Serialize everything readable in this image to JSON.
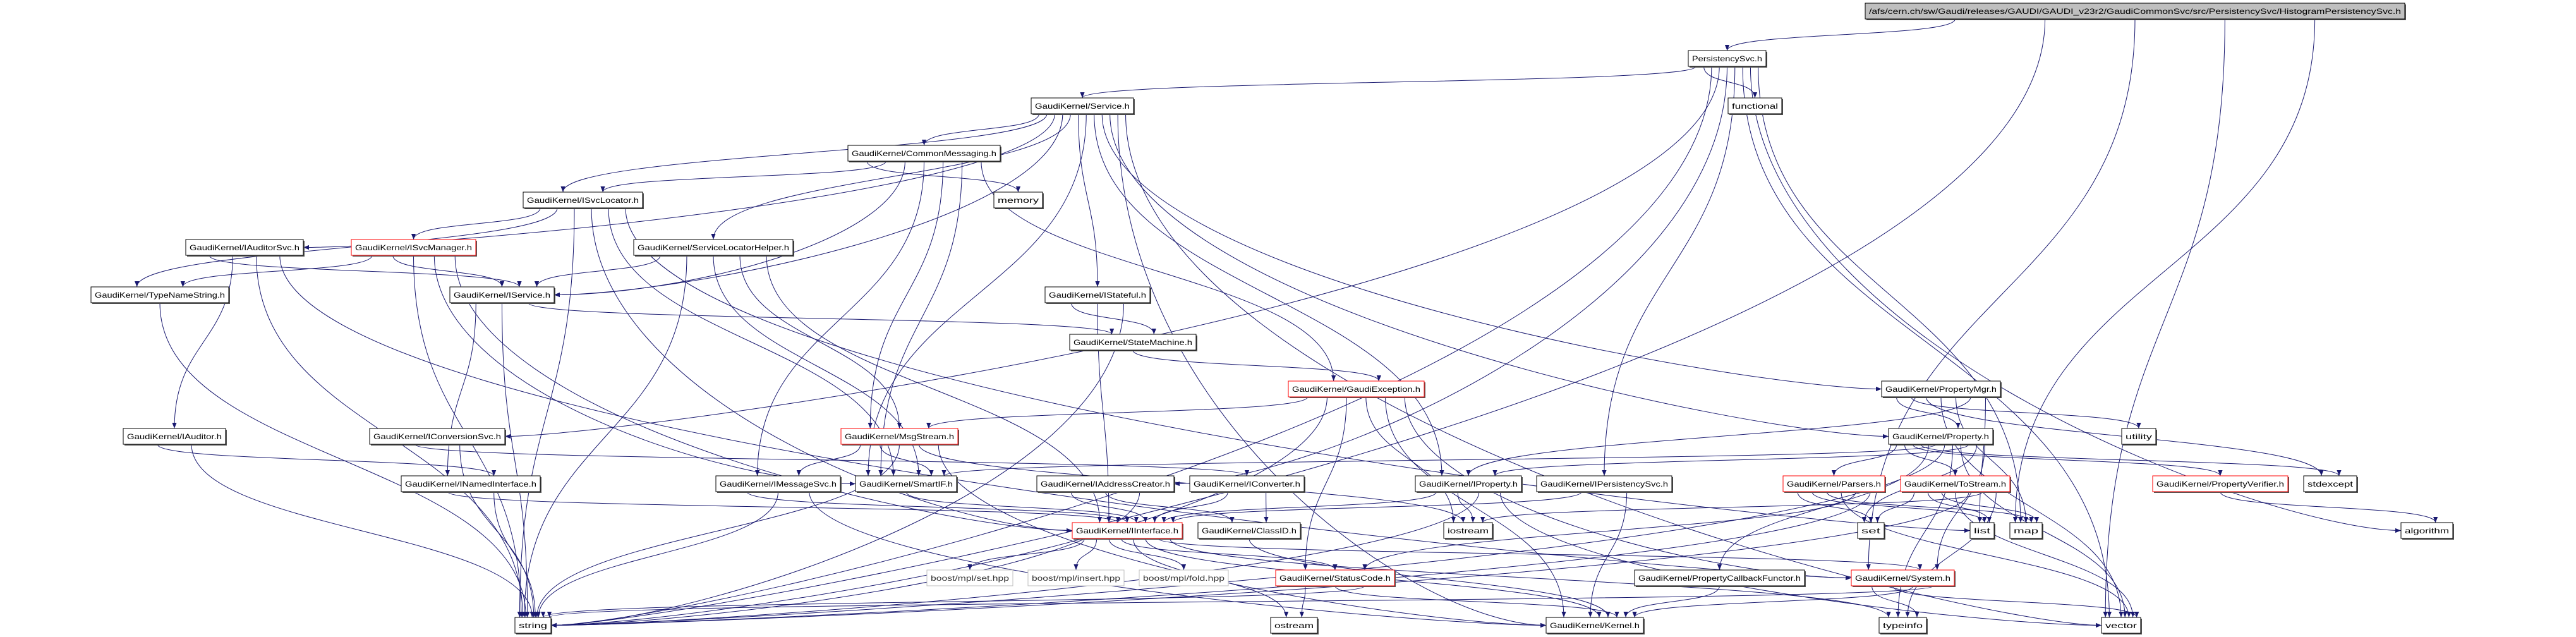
{
  "colors": {
    "edge": "#191970",
    "truncated_border": "#ff0000",
    "root_fill": "#bfbfbf",
    "external_border": "#bfbfbf"
  },
  "nodes": {
    "root": {
      "label": "/afs/cern.ch/sw/Gaudi/releases/GAUDI/GAUDI_v23r2/GaudiCommonSvc/src/PersistencySvc/HistogramPersistencySvc.h",
      "kind": "root"
    },
    "persist": {
      "label": "PersistencySvc.h",
      "kind": "normal"
    },
    "functional": {
      "label": "functional",
      "kind": "normal"
    },
    "service": {
      "label": "GaudiKernel/Service.h",
      "kind": "normal"
    },
    "commonmsg": {
      "label": "GaudiKernel/CommonMessaging.h",
      "kind": "normal"
    },
    "memory": {
      "label": "memory",
      "kind": "normal"
    },
    "isvclocator": {
      "label": "GaudiKernel/ISvcLocator.h",
      "kind": "normal"
    },
    "iauditorsvc": {
      "label": "GaudiKernel/IAuditorSvc.h",
      "kind": "normal"
    },
    "isvcmanager": {
      "label": "GaudiKernel/ISvcManager.h",
      "kind": "red"
    },
    "slh": {
      "label": "GaudiKernel/ServiceLocatorHelper.h",
      "kind": "normal"
    },
    "typenamestring": {
      "label": "GaudiKernel/TypeNameString.h",
      "kind": "normal"
    },
    "iservice": {
      "label": "GaudiKernel/IService.h",
      "kind": "normal"
    },
    "istateful": {
      "label": "GaudiKernel/IStateful.h",
      "kind": "normal"
    },
    "statemachine": {
      "label": "GaudiKernel/StateMachine.h",
      "kind": "normal"
    },
    "gaudiexception": {
      "label": "GaudiKernel/GaudiException.h",
      "kind": "red"
    },
    "propertymgr": {
      "label": "GaudiKernel/PropertyMgr.h",
      "kind": "normal"
    },
    "iauditor": {
      "label": "GaudiKernel/IAuditor.h",
      "kind": "normal"
    },
    "iconversionsvc": {
      "label": "GaudiKernel/IConversionSvc.h",
      "kind": "normal"
    },
    "msgstream": {
      "label": "GaudiKernel/MsgStream.h",
      "kind": "red"
    },
    "property": {
      "label": "GaudiKernel/Property.h",
      "kind": "normal"
    },
    "utility": {
      "label": "utility",
      "kind": "normal"
    },
    "inamedinterface": {
      "label": "GaudiKernel/INamedInterface.h",
      "kind": "normal"
    },
    "imessagesvc": {
      "label": "GaudiKernel/IMessageSvc.h",
      "kind": "normal"
    },
    "smartif": {
      "label": "GaudiKernel/SmartIF.h",
      "kind": "normal"
    },
    "iaddresscreator": {
      "label": "GaudiKernel/IAddressCreator.h",
      "kind": "normal"
    },
    "iconverter": {
      "label": "GaudiKernel/IConverter.h",
      "kind": "normal"
    },
    "iproperty": {
      "label": "GaudiKernel/IProperty.h",
      "kind": "normal"
    },
    "ipersistencysvc": {
      "label": "GaudiKernel/IPersistencySvc.h",
      "kind": "normal"
    },
    "parsers": {
      "label": "GaudiKernel/Parsers.h",
      "kind": "red"
    },
    "tostream": {
      "label": "GaudiKernel/ToStream.h",
      "kind": "red"
    },
    "propertyverifier": {
      "label": "GaudiKernel/PropertyVerifier.h",
      "kind": "red"
    },
    "stdexcept": {
      "label": "stdexcept",
      "kind": "normal"
    },
    "iinterface": {
      "label": "GaudiKernel/IInterface.h",
      "kind": "red"
    },
    "classid": {
      "label": "GaudiKernel/ClassID.h",
      "kind": "normal"
    },
    "iostream": {
      "label": "iostream",
      "kind": "normal"
    },
    "set": {
      "label": "set",
      "kind": "normal"
    },
    "list": {
      "label": "list",
      "kind": "normal"
    },
    "map": {
      "label": "map",
      "kind": "normal"
    },
    "algorithm": {
      "label": "algorithm",
      "kind": "normal"
    },
    "mplset": {
      "label": "boost/mpl/set.hpp",
      "kind": "gray"
    },
    "mplinsert": {
      "label": "boost/mpl/insert.hpp",
      "kind": "gray"
    },
    "mplfold": {
      "label": "boost/mpl/fold.hpp",
      "kind": "gray"
    },
    "statuscode": {
      "label": "GaudiKernel/StatusCode.h",
      "kind": "red"
    },
    "pcf": {
      "label": "GaudiKernel/PropertyCallbackFunctor.h",
      "kind": "normal"
    },
    "system": {
      "label": "GaudiKernel/System.h",
      "kind": "red"
    },
    "string": {
      "label": "string",
      "kind": "normal"
    },
    "ostream": {
      "label": "ostream",
      "kind": "normal"
    },
    "kernel": {
      "label": "GaudiKernel/Kernel.h",
      "kind": "normal"
    },
    "typeinfo": {
      "label": "typeinfo",
      "kind": "normal"
    },
    "vector": {
      "label": "vector",
      "kind": "normal"
    }
  },
  "edges": [
    [
      "root",
      "persist"
    ],
    [
      "root",
      "string"
    ],
    [
      "root",
      "system"
    ],
    [
      "root",
      "vector"
    ],
    [
      "root",
      "map"
    ],
    [
      "persist",
      "service"
    ],
    [
      "persist",
      "functional"
    ],
    [
      "persist",
      "string"
    ],
    [
      "persist",
      "iconversionsvc"
    ],
    [
      "persist",
      "iaddresscreator"
    ],
    [
      "persist",
      "ipersistencysvc"
    ],
    [
      "persist",
      "vector"
    ],
    [
      "persist",
      "algorithm"
    ],
    [
      "persist",
      "map"
    ],
    [
      "service",
      "commonmsg"
    ],
    [
      "service",
      "isvclocator"
    ],
    [
      "service",
      "iauditorsvc"
    ],
    [
      "service",
      "iservice"
    ],
    [
      "service",
      "slh"
    ],
    [
      "service",
      "istateful"
    ],
    [
      "service",
      "smartif"
    ],
    [
      "service",
      "iproperty"
    ],
    [
      "service",
      "propertymgr"
    ],
    [
      "service",
      "property"
    ],
    [
      "service",
      "kernel"
    ],
    [
      "service",
      "vector"
    ],
    [
      "commonmsg",
      "memory"
    ],
    [
      "commonmsg",
      "isvclocator"
    ],
    [
      "commonmsg",
      "iservice"
    ],
    [
      "commonmsg",
      "imessagesvc"
    ],
    [
      "commonmsg",
      "msgstream"
    ],
    [
      "commonmsg",
      "smartif"
    ],
    [
      "commonmsg",
      "gaudiexception"
    ],
    [
      "isvclocator",
      "isvcmanager"
    ],
    [
      "isvclocator",
      "typenamestring"
    ],
    [
      "isvclocator",
      "string"
    ],
    [
      "isvclocator",
      "iinterface"
    ],
    [
      "isvclocator",
      "smartif"
    ],
    [
      "isvclocator",
      "list"
    ],
    [
      "isvcmanager",
      "typenamestring"
    ],
    [
      "isvcmanager",
      "iservice"
    ],
    [
      "isvcmanager",
      "string"
    ],
    [
      "isvcmanager",
      "smartif"
    ],
    [
      "isvcmanager",
      "iinterface"
    ],
    [
      "iauditorsvc",
      "iservice"
    ],
    [
      "iauditorsvc",
      "iauditor"
    ],
    [
      "iauditorsvc",
      "string"
    ],
    [
      "iauditorsvc",
      "system"
    ],
    [
      "slh",
      "iservice"
    ],
    [
      "slh",
      "string"
    ],
    [
      "slh",
      "smartif"
    ],
    [
      "slh",
      "msgstream"
    ],
    [
      "slh",
      "iinterface"
    ],
    [
      "typenamestring",
      "string"
    ],
    [
      "iservice",
      "inamedinterface"
    ],
    [
      "iservice",
      "string"
    ],
    [
      "iservice",
      "statemachine"
    ],
    [
      "istateful",
      "statemachine"
    ],
    [
      "istateful",
      "iinterface"
    ],
    [
      "istateful",
      "string"
    ],
    [
      "statemachine",
      "gaudiexception"
    ],
    [
      "gaudiexception",
      "msgstream"
    ],
    [
      "gaudiexception",
      "string"
    ],
    [
      "gaudiexception",
      "statuscode"
    ],
    [
      "gaudiexception",
      "iostream"
    ],
    [
      "gaudiexception",
      "kernel"
    ],
    [
      "gaudiexception",
      "system"
    ],
    [
      "iauditor",
      "inamedinterface"
    ],
    [
      "iauditor",
      "string"
    ],
    [
      "iconversionsvc",
      "iconverter"
    ],
    [
      "iconversionsvc",
      "string"
    ],
    [
      "inamedinterface",
      "iinterface"
    ],
    [
      "inamedinterface",
      "string"
    ],
    [
      "msgstream",
      "imessagesvc"
    ],
    [
      "msgstream",
      "smartif"
    ],
    [
      "msgstream",
      "string"
    ],
    [
      "msgstream",
      "iostream"
    ],
    [
      "msgstream",
      "kernel"
    ],
    [
      "imessagesvc",
      "iinterface"
    ],
    [
      "imessagesvc",
      "string"
    ],
    [
      "imessagesvc",
      "kernel"
    ],
    [
      "smartif",
      "iinterface"
    ],
    [
      "iaddresscreator",
      "iinterface"
    ],
    [
      "iaddresscreator",
      "classid"
    ],
    [
      "iaddresscreator",
      "string"
    ],
    [
      "iconverter",
      "iinterface"
    ],
    [
      "iconverter",
      "classid"
    ],
    [
      "iproperty",
      "iinterface"
    ],
    [
      "iproperty",
      "iostream"
    ],
    [
      "iproperty",
      "string"
    ],
    [
      "iproperty",
      "vector"
    ],
    [
      "ipersistencysvc",
      "iinterface"
    ],
    [
      "ipersistencysvc",
      "kernel"
    ],
    [
      "iinterface",
      "mplset"
    ],
    [
      "iinterface",
      "mplinsert"
    ],
    [
      "iinterface",
      "mplfold"
    ],
    [
      "iinterface",
      "statuscode"
    ],
    [
      "iinterface",
      "ostream"
    ],
    [
      "iinterface",
      "kernel"
    ],
    [
      "iinterface",
      "system"
    ],
    [
      "iinterface",
      "typeinfo"
    ],
    [
      "classid",
      "kernel"
    ],
    [
      "statuscode",
      "ostream"
    ],
    [
      "statuscode",
      "kernel"
    ],
    [
      "statuscode",
      "string"
    ],
    [
      "propertymgr",
      "property"
    ],
    [
      "propertymgr",
      "utility"
    ],
    [
      "propertymgr",
      "stdexcept"
    ],
    [
      "propertymgr",
      "vector"
    ],
    [
      "propertymgr",
      "map"
    ],
    [
      "propertymgr",
      "iproperty"
    ],
    [
      "propertymgr",
      "list"
    ],
    [
      "property",
      "parsers"
    ],
    [
      "property",
      "tostream"
    ],
    [
      "property",
      "propertyverifier"
    ],
    [
      "property",
      "stdexcept"
    ],
    [
      "property",
      "pcf"
    ],
    [
      "property",
      "smartif"
    ],
    [
      "property",
      "string"
    ],
    [
      "property",
      "typeinfo"
    ],
    [
      "property",
      "vector"
    ],
    [
      "property",
      "iproperty"
    ],
    [
      "property",
      "set"
    ],
    [
      "property",
      "system"
    ],
    [
      "parsers",
      "set"
    ],
    [
      "parsers",
      "list"
    ],
    [
      "parsers",
      "map"
    ],
    [
      "parsers",
      "vector"
    ],
    [
      "parsers",
      "statuscode"
    ],
    [
      "parsers",
      "string"
    ],
    [
      "tostream",
      "set"
    ],
    [
      "tostream",
      "list"
    ],
    [
      "tostream",
      "map"
    ],
    [
      "tostream",
      "vector"
    ],
    [
      "tostream",
      "string"
    ],
    [
      "tostream",
      "iostream"
    ],
    [
      "tostream",
      "typeinfo"
    ],
    [
      "propertyverifier",
      "algorithm"
    ],
    [
      "pcf",
      "kernel"
    ],
    [
      "system",
      "typeinfo"
    ],
    [
      "system",
      "vector"
    ],
    [
      "system",
      "kernel"
    ],
    [
      "system",
      "string"
    ]
  ]
}
